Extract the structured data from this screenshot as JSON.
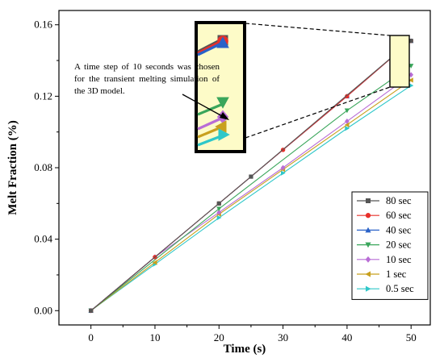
{
  "chart_data": {
    "type": "line",
    "xlabel": "Time (s)",
    "ylabel": "Melt Fraction (%)",
    "xlim": [
      -5,
      53
    ],
    "ylim": [
      -0.008,
      0.168
    ],
    "xticks": [
      0,
      10,
      20,
      30,
      40,
      50
    ],
    "yticks": [
      0.0,
      0.04,
      0.08,
      0.12,
      0.16
    ],
    "grid": false,
    "legend_position": "bottom-right",
    "series": [
      {
        "name": "80 sec",
        "color": "#555555",
        "marker": "square",
        "x": [
          0,
          20,
          25,
          50
        ],
        "y": [
          0,
          0.06,
          0.075,
          0.151
        ]
      },
      {
        "name": "60 sec",
        "color": "#e8302a",
        "marker": "circle",
        "x": [
          0,
          10,
          20,
          30,
          40,
          50
        ],
        "y": [
          0,
          0.03,
          0.06,
          0.09,
          0.12,
          0.151
        ]
      },
      {
        "name": "40 sec",
        "color": "#2a62c8",
        "marker": "triangle-up",
        "x": [
          0,
          40,
          50
        ],
        "y": [
          0,
          0.12,
          0.151
        ]
      },
      {
        "name": "20 sec",
        "color": "#3aa65b",
        "marker": "triangle-down",
        "x": [
          0,
          20,
          40,
          50
        ],
        "y": [
          0,
          0.057,
          0.112,
          0.137
        ]
      },
      {
        "name": "10 sec",
        "color": "#b96dd6",
        "marker": "diamond",
        "x": [
          0,
          10,
          20,
          30,
          40,
          50
        ],
        "y": [
          0,
          0.03,
          0.055,
          0.08,
          0.106,
          0.132
        ]
      },
      {
        "name": "1 sec",
        "color": "#c8a01e",
        "marker": "triangle-left",
        "x": [
          0,
          10,
          20,
          30,
          40,
          50
        ],
        "y": [
          0,
          0.027,
          0.054,
          0.079,
          0.104,
          0.129
        ]
      },
      {
        "name": "0.5 sec",
        "color": "#2ec7c9",
        "marker": "triangle-right",
        "x": [
          0,
          10,
          20,
          30,
          40,
          50
        ],
        "y": [
          0,
          0.026,
          0.052,
          0.077,
          0.102,
          0.126
        ]
      }
    ],
    "annotation": "A time step of 10 seconds was chosen for the transient melting simulation of the 3D model."
  }
}
